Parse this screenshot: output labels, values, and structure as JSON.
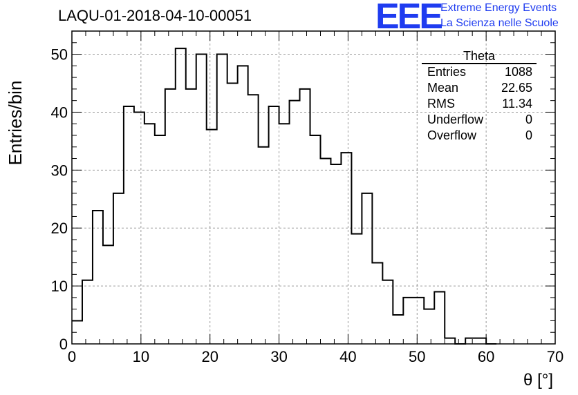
{
  "header": {
    "title": "LAQU-01-2018-04-10-00051"
  },
  "logo": {
    "text": "EEE",
    "line1": "Extreme Energy Events",
    "line2": "La Scienza nelle Scuole",
    "color": "#1f3cf0"
  },
  "stats_box": {
    "title": "Theta",
    "rows": [
      {
        "label": "Entries",
        "value": "1088"
      },
      {
        "label": "Mean",
        "value": "22.65"
      },
      {
        "label": "RMS",
        "value": "11.34"
      },
      {
        "label": "Underflow",
        "value": "0"
      },
      {
        "label": "Overflow",
        "value": "0"
      }
    ]
  },
  "chart_data": {
    "type": "bar",
    "style": "step-histogram",
    "xlabel": "θ [°]",
    "ylabel": "Entries/bin",
    "xlim": [
      0,
      70
    ],
    "ylim": [
      0,
      54
    ],
    "xticks": [
      0,
      10,
      20,
      30,
      40,
      50,
      60,
      70
    ],
    "yticks": [
      0,
      10,
      20,
      30,
      40,
      50
    ],
    "grid": true,
    "bin_width": 1.5,
    "bin_edges_start": 0,
    "values": [
      4,
      11,
      23,
      17,
      26,
      41,
      40,
      38,
      36,
      44,
      51,
      44,
      50,
      37,
      50,
      45,
      48,
      43,
      34,
      41,
      38,
      42,
      44,
      36,
      32,
      31,
      33,
      19,
      26,
      14,
      11,
      5,
      8,
      8,
      6,
      9,
      1,
      0,
      1,
      1,
      0
    ]
  }
}
